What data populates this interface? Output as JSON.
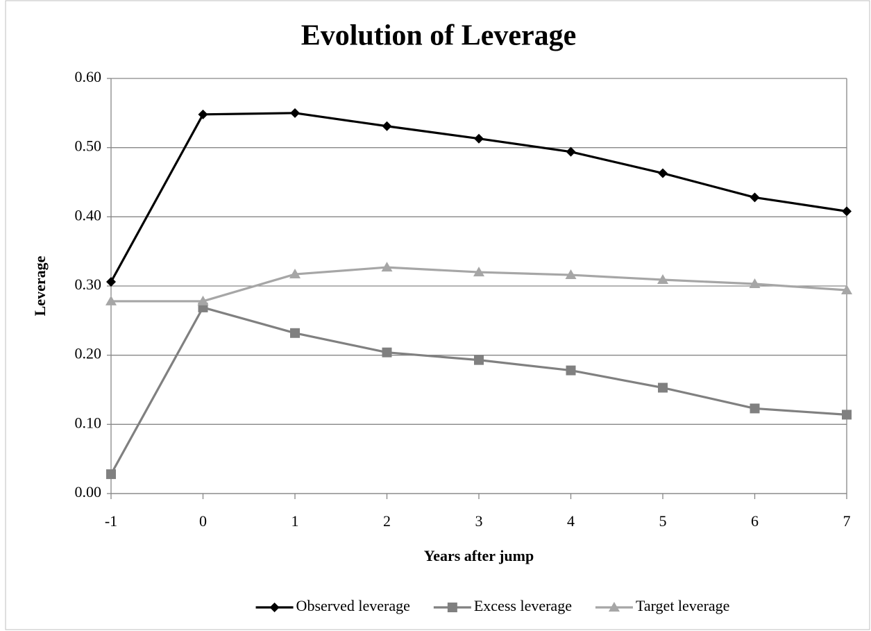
{
  "chart_data": {
    "type": "line",
    "title": "Evolution of Leverage",
    "x_label": "Years after jump",
    "y_label": "Leverage",
    "x": [
      -1,
      0,
      1,
      2,
      3,
      4,
      5,
      6,
      7
    ],
    "xlim": [
      -1,
      7
    ],
    "xticks": [
      -1,
      0,
      1,
      2,
      3,
      4,
      5,
      6,
      7
    ],
    "ylim": [
      0,
      0.6
    ],
    "yticks": [
      {
        "value": 0,
        "label": "0.00"
      },
      {
        "value": 0.1,
        "label": "0.10"
      },
      {
        "value": 0.2,
        "label": "0.20"
      },
      {
        "value": 0.3,
        "label": "0.30"
      },
      {
        "value": 0.4,
        "label": "0.40"
      },
      {
        "value": 0.5,
        "label": "0.50"
      },
      {
        "value": 0.6,
        "label": "0.60"
      }
    ],
    "grid": true,
    "legend": "bottom",
    "series": [
      {
        "name": "Observed leverage",
        "color": "#000000",
        "marker": "diamond",
        "values": [
          0.306,
          0.548,
          0.55,
          0.531,
          0.513,
          0.494,
          0.463,
          0.428,
          0.408
        ]
      },
      {
        "name": "Excess leverage",
        "color": "#808080",
        "marker": "square",
        "values": [
          0.028,
          0.269,
          0.232,
          0.204,
          0.193,
          0.178,
          0.153,
          0.123,
          0.114
        ]
      },
      {
        "name": "Target leverage",
        "color": "#a6a6a6",
        "marker": "triangle",
        "values": [
          0.278,
          0.278,
          0.317,
          0.327,
          0.32,
          0.316,
          0.309,
          0.303,
          0.294
        ]
      }
    ]
  }
}
